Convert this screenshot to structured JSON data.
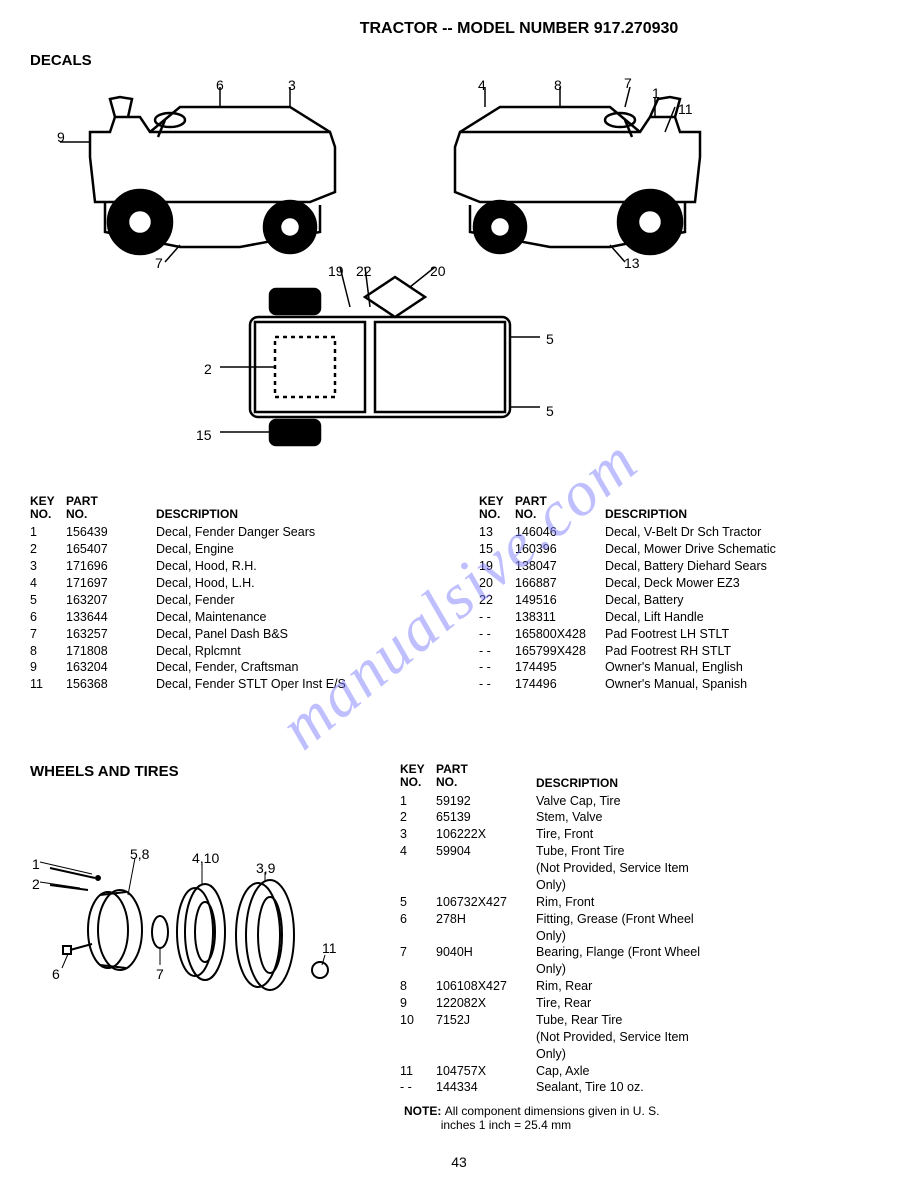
{
  "title": "TRACTOR -- MODEL NUMBER 917.270930",
  "section1_heading": "DECALS",
  "decals_left": {
    "hdr_key1": "KEY",
    "hdr_key2": "NO.",
    "hdr_part1": "PART",
    "hdr_part2": "NO.",
    "hdr_desc": "DESCRIPTION",
    "rows": [
      {
        "key": "1",
        "part": "156439",
        "desc": "Decal, Fender Danger Sears"
      },
      {
        "key": "2",
        "part": "165407",
        "desc": "Decal, Engine"
      },
      {
        "key": "3",
        "part": "171696",
        "desc": "Decal, Hood, R.H."
      },
      {
        "key": "4",
        "part": "171697",
        "desc": "Decal, Hood, L.H."
      },
      {
        "key": "5",
        "part": "163207",
        "desc": "Decal, Fender"
      },
      {
        "key": "6",
        "part": "133644",
        "desc": "Decal, Maintenance"
      },
      {
        "key": "7",
        "part": "163257",
        "desc": "Decal, Panel Dash B&S"
      },
      {
        "key": "8",
        "part": "171808",
        "desc": "Decal, Rplcmnt"
      },
      {
        "key": "9",
        "part": "163204",
        "desc": "Decal, Fender, Craftsman"
      },
      {
        "key": "11",
        "part": "156368",
        "desc": "Decal, Fender STLT Oper Inst E/S"
      }
    ]
  },
  "decals_right": {
    "hdr_key1": "KEY",
    "hdr_key2": "NO.",
    "hdr_part1": "PART",
    "hdr_part2": "NO.",
    "hdr_desc": "DESCRIPTION",
    "rows": [
      {
        "key": "13",
        "part": "146046",
        "desc": "Decal, V-Belt Dr Sch Tractor"
      },
      {
        "key": "15",
        "part": "160396",
        "desc": "Decal, Mower Drive Schematic"
      },
      {
        "key": "19",
        "part": "138047",
        "desc": "Decal, Battery Diehard Sears"
      },
      {
        "key": "20",
        "part": "166887",
        "desc": "Decal, Deck Mower EZ3"
      },
      {
        "key": "22",
        "part": "149516",
        "desc": "Decal, Battery"
      },
      {
        "key": "- -",
        "part": "138311",
        "desc": "Decal, Lift Handle"
      },
      {
        "key": "- -",
        "part": "165800X428",
        "desc": "Pad Footrest LH STLT"
      },
      {
        "key": "- -",
        "part": "165799X428",
        "desc": "Pad Footrest RH STLT"
      },
      {
        "key": "- -",
        "part": "174495",
        "desc": "Owner's Manual, English"
      },
      {
        "key": "- -",
        "part": "174496",
        "desc": "Owner's Manual, Spanish"
      }
    ]
  },
  "section2_heading": "WHEELS AND TIRES",
  "wheels": {
    "hdr_key1": "KEY",
    "hdr_key2": "NO.",
    "hdr_part1": "PART",
    "hdr_part2": "NO.",
    "hdr_desc": "DESCRIPTION",
    "rows": [
      {
        "key": "1",
        "part": "59192",
        "desc": "Valve Cap, Tire"
      },
      {
        "key": "2",
        "part": "65139",
        "desc": "Stem, Valve"
      },
      {
        "key": "3",
        "part": "106222X",
        "desc": "Tire, Front"
      },
      {
        "key": "4",
        "part": "59904",
        "desc": "Tube, Front Tire"
      },
      {
        "key": "",
        "part": "",
        "desc": "(Not Provided, Service Item"
      },
      {
        "key": "",
        "part": "",
        "desc": "Only)"
      },
      {
        "key": "5",
        "part": "106732X427",
        "desc": "Rim, Front"
      },
      {
        "key": "6",
        "part": "278H",
        "desc": "Fitting, Grease (Front Wheel"
      },
      {
        "key": "",
        "part": "",
        "desc": "Only)"
      },
      {
        "key": "7",
        "part": "9040H",
        "desc": "Bearing, Flange (Front Wheel"
      },
      {
        "key": "",
        "part": "",
        "desc": "Only)"
      },
      {
        "key": "8",
        "part": "106108X427",
        "desc": "Rim, Rear"
      },
      {
        "key": "9",
        "part": "122082X",
        "desc": "Tire, Rear"
      },
      {
        "key": "10",
        "part": "7152J",
        "desc": "Tube, Rear Tire"
      },
      {
        "key": "",
        "part": "",
        "desc": "(Not Provided, Service Item"
      },
      {
        "key": "",
        "part": "",
        "desc": "Only)"
      },
      {
        "key": "11",
        "part": "104757X",
        "desc": "Cap, Axle"
      },
      {
        "key": "- -",
        "part": "144334",
        "desc": "Sealant, Tire 10 oz."
      }
    ]
  },
  "note_label": "NOTE:",
  "note_text1": "All component dimensions given in U. S.",
  "note_text2": "inches 1 inch = 25.4 mm",
  "page_number": "43",
  "watermark": "manualsive.com",
  "callouts_left": {
    "c9": "9",
    "c6": "6",
    "c3": "3",
    "c7": "7"
  },
  "callouts_right": {
    "c4": "4",
    "c8": "8",
    "c7": "7",
    "c1": "1",
    "c11": "11",
    "c13": "13"
  },
  "callouts_top": {
    "c19": "19",
    "c22": "22",
    "c20": "20",
    "c2": "2",
    "c15": "15",
    "c5a": "5",
    "c5b": "5"
  },
  "callouts_wheel": {
    "c1": "1",
    "c2": "2",
    "c58": "5,8",
    "c410": "4,10",
    "c6": "6",
    "c7": "7",
    "c39": "3,9",
    "c11": "11"
  }
}
